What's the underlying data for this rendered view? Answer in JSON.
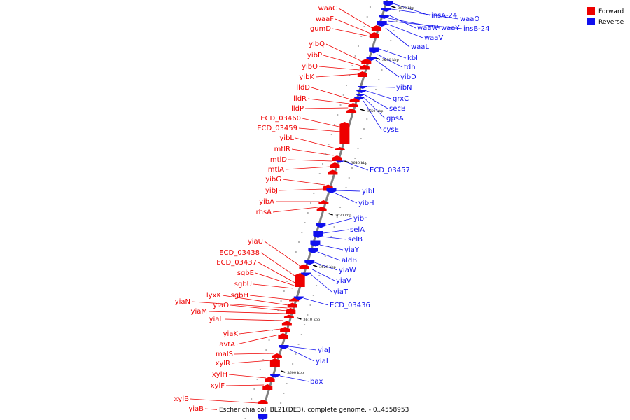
{
  "colors": {
    "forward": "#ee0000",
    "reverse": "#1010ee",
    "backbone": "#808080"
  },
  "legend": [
    {
      "key": "forward",
      "label": "Forward"
    },
    {
      "key": "reverse",
      "label": "Reverse"
    }
  ],
  "caption": "Escherichia coli BL21(DE3), complete genome. - 0..4558953",
  "ticks": [
    "3670 kbp",
    "3660 kbp",
    "3650 kbp",
    "3640 kbp",
    "3630 kbp",
    "3620 kbp",
    "3610 kbp",
    "3600 kbp"
  ],
  "forward_genes": [
    "waaC",
    "waaF",
    "gumD",
    "yibQ",
    "yibP",
    "yibO",
    "yibK",
    "lldD",
    "lldR",
    "lldP",
    "ECD_03460",
    "ECD_03459",
    "yibL",
    "mtlR",
    "mtlD",
    "mtlA",
    "yibG",
    "yibJ",
    "yibA",
    "rhsA",
    "yiaU",
    "ECD_03438",
    "ECD_03437",
    "sgbE",
    "sgbU",
    "sgbH",
    "lyxK",
    "yiaN",
    "yiaO",
    "yiaM",
    "yiaL",
    "yiaK",
    "avtA",
    "malS",
    "xylR",
    "xylH",
    "xylF",
    "xylB",
    "yiaB"
  ],
  "reverse_genes": [
    "insA-24",
    "waaO",
    "waaW",
    "waaY",
    "insB-24",
    "waaV",
    "waaL",
    "kbl",
    "tdh",
    "yibD",
    "yibN",
    "grxC",
    "secB",
    "gpsA",
    "cysE",
    "ECD_03457",
    "yibI",
    "yibH",
    "yibF",
    "selA",
    "selB",
    "yiaY",
    "aldB",
    "yiaW",
    "yiaV",
    "yiaT",
    "ECD_03436",
    "yiaJ",
    "yiaI",
    "bax"
  ]
}
